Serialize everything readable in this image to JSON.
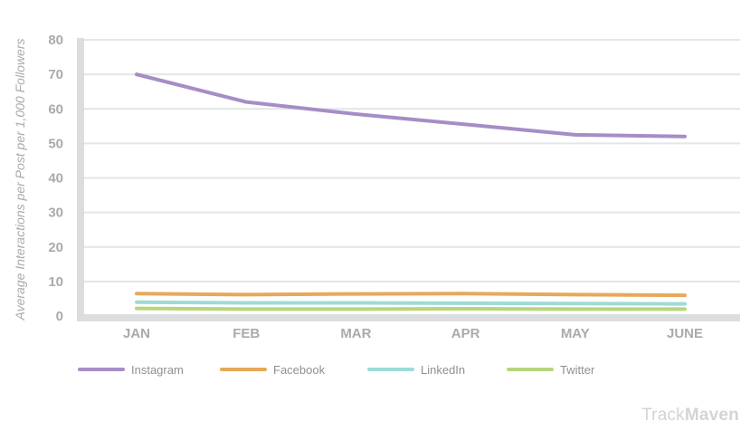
{
  "chart_data": {
    "type": "line",
    "title": "",
    "ylabel": "Average Interactions per Post per 1,000 Followers",
    "xlabel": "",
    "categories": [
      "JAN",
      "FEB",
      "MAR",
      "APR",
      "MAY",
      "JUNE"
    ],
    "ylim": [
      0,
      80
    ],
    "yticks": [
      "0",
      "10",
      "20",
      "30",
      "40",
      "50",
      "60",
      "70",
      "80"
    ],
    "grid": true,
    "legend_position": "bottom",
    "series": [
      {
        "name": "Instagram",
        "color": "#a68dc6",
        "values": [
          70,
          62,
          58.5,
          55.5,
          52.5,
          52
        ]
      },
      {
        "name": "Facebook",
        "color": "#e6a85a",
        "values": [
          6.5,
          6.2,
          6.4,
          6.5,
          6.2,
          6.0
        ]
      },
      {
        "name": "LinkedIn",
        "color": "#9ddbd6",
        "values": [
          4.0,
          3.8,
          3.8,
          3.7,
          3.6,
          3.5
        ]
      },
      {
        "name": "Twitter",
        "color": "#b8d57e",
        "values": [
          2.2,
          2.0,
          2.0,
          2.1,
          2.0,
          2.0
        ]
      }
    ]
  },
  "watermark": {
    "part1": "Track",
    "part2": "Maven"
  }
}
